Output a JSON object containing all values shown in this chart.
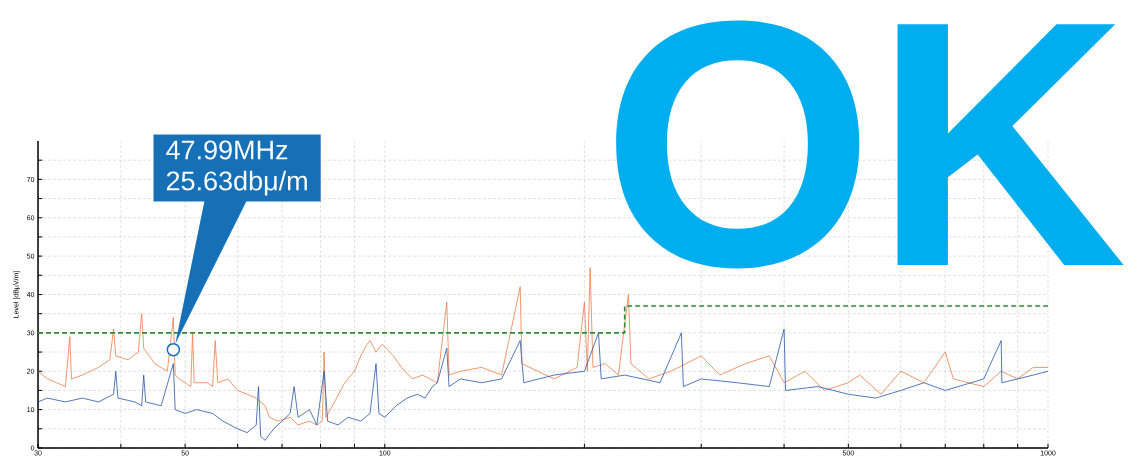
{
  "chart_data": {
    "type": "line",
    "ylabel": "Level [dBµV/m]",
    "log": "x",
    "xlim": [
      30,
      1000
    ],
    "ylim": [
      0,
      80
    ],
    "xticks": [
      30,
      {
        "value": 40,
        "label": null
      },
      50,
      {
        "value": 60,
        "label": null
      },
      {
        "value": 70,
        "label": null
      },
      {
        "value": 80,
        "label": null
      },
      {
        "value": 90,
        "label": null
      },
      100,
      {
        "value": 200,
        "label": null
      },
      {
        "value": 300,
        "label": null
      },
      {
        "value": 400,
        "label": null
      },
      500,
      {
        "value": 600,
        "label": null
      },
      {
        "value": 700,
        "label": null
      },
      {
        "value": 800,
        "label": null
      },
      {
        "value": 900,
        "label": null
      },
      1000
    ],
    "yticks": [
      0,
      {
        "value": 5,
        "label": null
      },
      10,
      {
        "value": 15,
        "label": null
      },
      20,
      {
        "value": 25,
        "label": null
      },
      30,
      {
        "value": 35,
        "label": null
      },
      40,
      {
        "value": 45,
        "label": null
      },
      50,
      {
        "value": 55,
        "label": null
      },
      60,
      {
        "value": 65,
        "label": null
      },
      70,
      {
        "value": 75,
        "label": null
      }
    ],
    "grid": true,
    "series": [
      {
        "color": "#f07c4a",
        "x": [
          30,
          31,
          32,
          33,
          33.5,
          33.7,
          35,
          37,
          38.5,
          39,
          39.3,
          41,
          42.5,
          43,
          43.3,
          45,
          46,
          47,
          47.99,
          48.3,
          49,
          50,
          51,
          51.3,
          51.6,
          54,
          55,
          55.5,
          56,
          58,
          60,
          62,
          64,
          66,
          67,
          69,
          72,
          74,
          77,
          79,
          80.5,
          81,
          81.5,
          84,
          87,
          90,
          92,
          94,
          95,
          97,
          99,
          100.5,
          103,
          106,
          110,
          114,
          120,
          124,
          125,
          130,
          140,
          150,
          160,
          161,
          170,
          180,
          195,
          200,
          202,
          204,
          206,
          215,
          225,
          233,
          235,
          250,
          270,
          300,
          320,
          350,
          380,
          400,
          430,
          460,
          500,
          520,
          560,
          600,
          650,
          700,
          720,
          800,
          850,
          900,
          950,
          1000
        ],
        "values": [
          20,
          18,
          17,
          16,
          29,
          18,
          19,
          21,
          23,
          31,
          24,
          23,
          25,
          35,
          26,
          22,
          21,
          20,
          34,
          19,
          18,
          17,
          16,
          30,
          17,
          17,
          16,
          28,
          17,
          18,
          15,
          14,
          13,
          11,
          8,
          7,
          8,
          6,
          7,
          6,
          7,
          25,
          8,
          12,
          17,
          20,
          24,
          27,
          28,
          25,
          27,
          26,
          24,
          21,
          18,
          19,
          17,
          38,
          19,
          20,
          21,
          19,
          42,
          22,
          20,
          18,
          21,
          38,
          20,
          47,
          21,
          22,
          19,
          40,
          22,
          18,
          20,
          24,
          19,
          22,
          24,
          17,
          20,
          15,
          17,
          19,
          14,
          20,
          17,
          25,
          18,
          16,
          20,
          18,
          21,
          21
        ]
      },
      {
        "color": "#2a56a8",
        "x": [
          30,
          31,
          33,
          35,
          37,
          39,
          39.3,
          39.6,
          42,
          43,
          43.3,
          43.6,
          46,
          47.99,
          48.3,
          50,
          52,
          55,
          57,
          60,
          62,
          64,
          64.5,
          65,
          66,
          68,
          70,
          72,
          73,
          74,
          77,
          79,
          81,
          82,
          85,
          88,
          92,
          95,
          97,
          98,
          100,
          104,
          108,
          112,
          115,
          118,
          120,
          124,
          125,
          130,
          140,
          150,
          160,
          162,
          180,
          200,
          210,
          212,
          230,
          260,
          280,
          282,
          300,
          340,
          380,
          400,
          402,
          450,
          500,
          550,
          600,
          650,
          700,
          800,
          850,
          852,
          900,
          950,
          1000
        ],
        "values": [
          12,
          13,
          12,
          13,
          12,
          14,
          20,
          13,
          12,
          11,
          19,
          12,
          11,
          22,
          10,
          9,
          10,
          9,
          7,
          5,
          4,
          6,
          16,
          3,
          2,
          5,
          7,
          9,
          16,
          8,
          10,
          6,
          20,
          7,
          6,
          8,
          7,
          9,
          22,
          9,
          8,
          11,
          13,
          14,
          13,
          16,
          17,
          26,
          16,
          18,
          17,
          18,
          28,
          17,
          19,
          20,
          30,
          18,
          19,
          17,
          30,
          16,
          18,
          17,
          16,
          31,
          15,
          16,
          14,
          13,
          15,
          17,
          15,
          18,
          28,
          17,
          18,
          19,
          20
        ]
      },
      {
        "type": "step",
        "color": "#2e8b3a",
        "line_style": "dashed",
        "x": [
          30,
          230,
          1000
        ],
        "values": [
          30,
          37,
          37
        ]
      },
      {
        "type": "scatter",
        "color": "#1670b8",
        "marker": "circle",
        "x": [
          47.99
        ],
        "values": [
          25.63
        ]
      }
    ],
    "annotations": [
      "47.99MHz",
      "25.63dbμ/m",
      "OK"
    ]
  }
}
